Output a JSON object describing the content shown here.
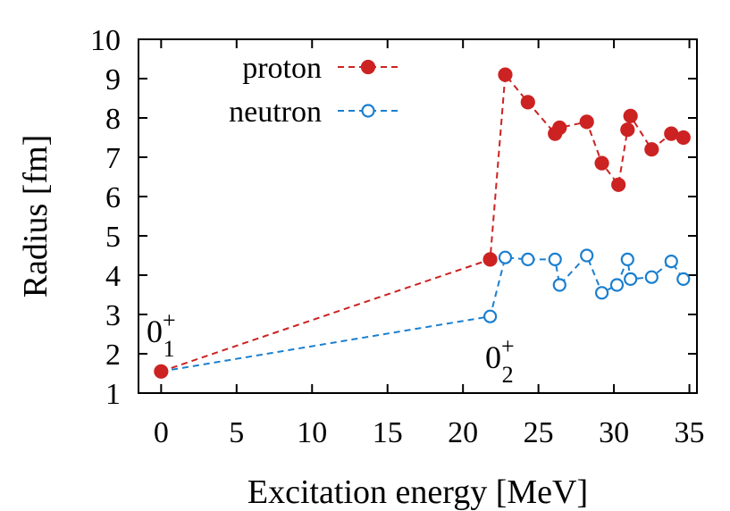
{
  "chart_data": {
    "type": "line",
    "xlabel": "Excitation energy [MeV]",
    "ylabel": "Radius [fm]",
    "xlim": [
      -1.5,
      35.5
    ],
    "ylim": [
      1,
      10
    ],
    "xticks": [
      "0",
      "5",
      "10",
      "15",
      "20",
      "25",
      "30",
      "35"
    ],
    "yticks": [
      "1",
      "2",
      "3",
      "4",
      "5",
      "6",
      "7",
      "8",
      "9",
      "10"
    ],
    "legend_position": "top-left",
    "series": [
      {
        "name": "proton",
        "color": "#cc2222",
        "marker": "filled-circle",
        "line": "dashed",
        "x": [
          0.0,
          21.8,
          22.8,
          24.3,
          26.1,
          26.4,
          28.2,
          29.2,
          30.3,
          30.9,
          31.1,
          32.5,
          33.8,
          34.6
        ],
        "y": [
          1.55,
          4.4,
          9.1,
          8.4,
          7.6,
          7.75,
          7.9,
          6.85,
          6.3,
          7.7,
          8.05,
          7.2,
          7.6,
          7.5
        ]
      },
      {
        "name": "neutron",
        "color": "#1a7fcf",
        "marker": "open-circle",
        "line": "dashed",
        "x": [
          0.0,
          21.8,
          22.8,
          24.3,
          26.1,
          26.4,
          28.2,
          29.2,
          30.2,
          30.9,
          31.1,
          32.5,
          33.8,
          34.6
        ],
        "y": [
          1.55,
          2.95,
          4.45,
          4.4,
          4.4,
          3.75,
          4.5,
          3.55,
          3.75,
          4.4,
          3.9,
          3.95,
          4.35,
          3.9
        ]
      }
    ],
    "annotations": [
      {
        "base": "0",
        "sup": "+",
        "sub": "1",
        "x": 0.0,
        "y": 1.55
      },
      {
        "base": "0",
        "sup": "+",
        "sub": "2",
        "x": 21.8,
        "y": 2.95
      }
    ]
  }
}
